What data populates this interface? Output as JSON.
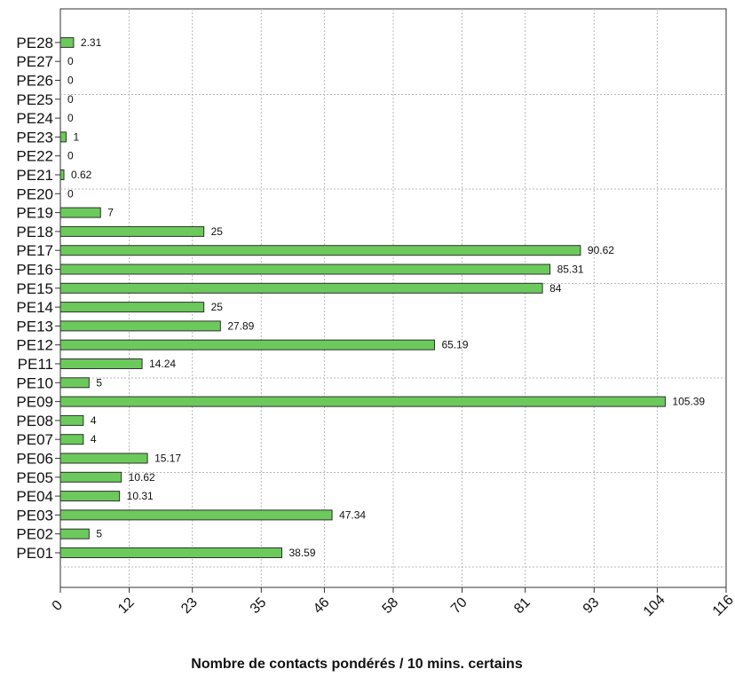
{
  "chart_data": {
    "type": "bar",
    "orientation": "horizontal",
    "title": "",
    "xlabel": "Nombre de contacts pondérés / 10 mins. certains",
    "ylabel": "",
    "xlim": [
      0,
      116
    ],
    "x_ticks": [
      0,
      12,
      23,
      35,
      46,
      58,
      70,
      81,
      93,
      104,
      116
    ],
    "grid": true,
    "legend": "none",
    "categories": [
      "PE01",
      "PE02",
      "PE03",
      "PE04",
      "PE05",
      "PE06",
      "PE07",
      "PE08",
      "PE09",
      "PE10",
      "PE11",
      "PE12",
      "PE13",
      "PE14",
      "PE15",
      "PE16",
      "PE17",
      "PE18",
      "PE19",
      "PE20",
      "PE21",
      "PE22",
      "PE23",
      "PE24",
      "PE25",
      "PE26",
      "PE27",
      "PE28"
    ],
    "values": [
      38.59,
      5,
      47.34,
      10.31,
      10.62,
      15.17,
      4,
      4,
      105.39,
      5,
      14.24,
      65.19,
      27.89,
      25,
      84,
      85.31,
      90.62,
      25,
      7,
      0,
      0.62,
      0,
      1,
      0,
      0,
      0,
      0,
      2.31
    ],
    "value_labels": [
      "38.59",
      "5",
      "47.34",
      "10.31",
      "10.62",
      "15.17",
      "4",
      "4",
      "105.39",
      "5",
      "14.24",
      "65.19",
      "27.89",
      "25",
      "84",
      "85.31",
      "90.62",
      "25",
      "7",
      "0",
      "0.62",
      "0",
      "1",
      "0",
      "0",
      "0",
      "0",
      "2.31"
    ],
    "colors": {
      "bar_fill": "#6cca5c",
      "bar_stroke": "#2f2f2f",
      "axis": "#333333",
      "grid": "#b8b8b8"
    }
  }
}
